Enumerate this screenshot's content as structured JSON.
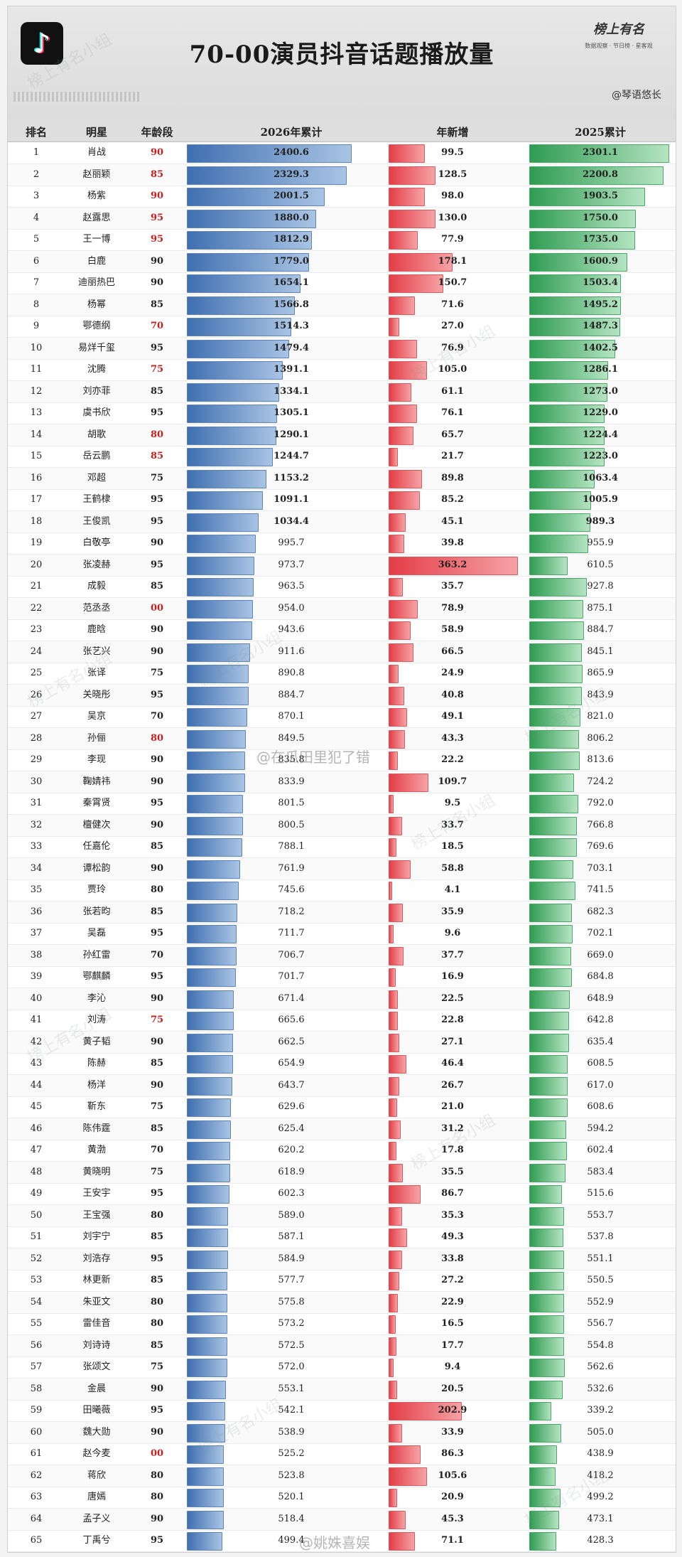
{
  "header": {
    "title": "70-00演员抖音话题播放量",
    "brand_name": "榜上有名",
    "brand_sub": "数据观察 · 节日榜 · 星客观",
    "author": "@琴语悠长",
    "watermark": "榜上有名小组",
    "weibo_mark_1": "@在瓜田里犯了错",
    "weibo_mark_2": "@姚姝喜娱"
  },
  "columns": {
    "rank": "排名",
    "star": "明星",
    "age": "年龄段",
    "total_2026": "2026年累计",
    "new": "年新增",
    "total_2025": "2025累计"
  },
  "colors": {
    "blue": "#3f6fb0",
    "red": "#e43d46",
    "green": "#2f9c52",
    "age_red": "#c41f1f"
  },
  "chart_data": {
    "type": "table",
    "title": "70-00演员抖音话题播放量",
    "columns": [
      "排名",
      "明星",
      "年龄段",
      "2026年累计",
      "年新增",
      "2025累计"
    ],
    "bar_scale_max": {
      "2026年累计": 2400.6,
      "年新增": 363.2,
      "2025累计": 2301.1
    },
    "rows": [
      {
        "rank": "1",
        "name": "肖战",
        "age": "90",
        "t2026": "2400.6",
        "inc": "99.5",
        "t2025": "2301.1",
        "red": true
      },
      {
        "rank": "2",
        "name": "赵丽颖",
        "age": "85",
        "t2026": "2329.3",
        "inc": "128.5",
        "t2025": "2200.8",
        "red": true
      },
      {
        "rank": "3",
        "name": "杨紫",
        "age": "90",
        "t2026": "2001.5",
        "inc": "98.0",
        "t2025": "1903.5",
        "red": true
      },
      {
        "rank": "4",
        "name": "赵露思",
        "age": "95",
        "t2026": "1880.0",
        "inc": "130.0",
        "t2025": "1750.0",
        "red": true
      },
      {
        "rank": "5",
        "name": "王一博",
        "age": "95",
        "t2026": "1812.9",
        "inc": "77.9",
        "t2025": "1735.0",
        "red": true
      },
      {
        "rank": "6",
        "name": "白鹿",
        "age": "90",
        "t2026": "1779.0",
        "inc": "178.1",
        "t2025": "1600.9",
        "red": false
      },
      {
        "rank": "7",
        "name": "迪丽热巴",
        "age": "90",
        "t2026": "1654.1",
        "inc": "150.7",
        "t2025": "1503.4",
        "red": false
      },
      {
        "rank": "8",
        "name": "杨幂",
        "age": "85",
        "t2026": "1566.8",
        "inc": "71.6",
        "t2025": "1495.2",
        "red": false
      },
      {
        "rank": "9",
        "name": "鄂德纲",
        "age": "70",
        "t2026": "1514.3",
        "inc": "27.0",
        "t2025": "1487.3",
        "red": true
      },
      {
        "rank": "10",
        "name": "易烊千玺",
        "age": "95",
        "t2026": "1479.4",
        "inc": "76.9",
        "t2025": "1402.5",
        "red": false
      },
      {
        "rank": "11",
        "name": "沈腾",
        "age": "75",
        "t2026": "1391.1",
        "inc": "105.0",
        "t2025": "1286.1",
        "red": true
      },
      {
        "rank": "12",
        "name": "刘亦菲",
        "age": "85",
        "t2026": "1334.1",
        "inc": "61.1",
        "t2025": "1273.0",
        "red": false
      },
      {
        "rank": "13",
        "name": "虞书欣",
        "age": "95",
        "t2026": "1305.1",
        "inc": "76.1",
        "t2025": "1229.0",
        "red": false
      },
      {
        "rank": "14",
        "name": "胡歌",
        "age": "80",
        "t2026": "1290.1",
        "inc": "65.7",
        "t2025": "1224.4",
        "red": true
      },
      {
        "rank": "15",
        "name": "岳云鹏",
        "age": "85",
        "t2026": "1244.7",
        "inc": "21.7",
        "t2025": "1223.0",
        "red": true
      },
      {
        "rank": "16",
        "name": "邓超",
        "age": "75",
        "t2026": "1153.2",
        "inc": "89.8",
        "t2025": "1063.4",
        "red": false
      },
      {
        "rank": "17",
        "name": "王鹤棣",
        "age": "95",
        "t2026": "1091.1",
        "inc": "85.2",
        "t2025": "1005.9",
        "red": false
      },
      {
        "rank": "18",
        "name": "王俊凯",
        "age": "95",
        "t2026": "1034.4",
        "inc": "45.1",
        "t2025": "989.3",
        "red": false
      },
      {
        "rank": "19",
        "name": "白敬亭",
        "age": "90",
        "t2026": "995.7",
        "inc": "39.8",
        "t2025": "955.9",
        "red": false
      },
      {
        "rank": "20",
        "name": "张凌赫",
        "age": "95",
        "t2026": "973.7",
        "inc": "363.2",
        "t2025": "610.5",
        "red": false
      },
      {
        "rank": "21",
        "name": "成毅",
        "age": "85",
        "t2026": "963.5",
        "inc": "35.7",
        "t2025": "927.8",
        "red": false
      },
      {
        "rank": "22",
        "name": "范丞丞",
        "age": "00",
        "t2026": "954.0",
        "inc": "78.9",
        "t2025": "875.1",
        "red": true
      },
      {
        "rank": "23",
        "name": "鹿晗",
        "age": "90",
        "t2026": "943.6",
        "inc": "58.9",
        "t2025": "884.7",
        "red": false
      },
      {
        "rank": "24",
        "name": "张艺兴",
        "age": "90",
        "t2026": "911.6",
        "inc": "66.5",
        "t2025": "845.1",
        "red": false
      },
      {
        "rank": "25",
        "name": "张译",
        "age": "75",
        "t2026": "890.8",
        "inc": "24.9",
        "t2025": "865.9",
        "red": false
      },
      {
        "rank": "26",
        "name": "关晓彤",
        "age": "95",
        "t2026": "884.7",
        "inc": "40.8",
        "t2025": "843.9",
        "red": false
      },
      {
        "rank": "27",
        "name": "吴京",
        "age": "70",
        "t2026": "870.1",
        "inc": "49.1",
        "t2025": "821.0",
        "red": false
      },
      {
        "rank": "28",
        "name": "孙俪",
        "age": "80",
        "t2026": "849.5",
        "inc": "43.3",
        "t2025": "806.2",
        "red": true
      },
      {
        "rank": "29",
        "name": "李现",
        "age": "90",
        "t2026": "835.8",
        "inc": "22.2",
        "t2025": "813.6",
        "red": false
      },
      {
        "rank": "30",
        "name": "鞠婧祎",
        "age": "90",
        "t2026": "833.9",
        "inc": "109.7",
        "t2025": "724.2",
        "red": false
      },
      {
        "rank": "31",
        "name": "秦霄贤",
        "age": "95",
        "t2026": "801.5",
        "inc": "9.5",
        "t2025": "792.0",
        "red": false
      },
      {
        "rank": "32",
        "name": "檀健次",
        "age": "90",
        "t2026": "800.5",
        "inc": "33.7",
        "t2025": "766.8",
        "red": false
      },
      {
        "rank": "33",
        "name": "任嘉伦",
        "age": "85",
        "t2026": "788.1",
        "inc": "18.5",
        "t2025": "769.6",
        "red": false
      },
      {
        "rank": "34",
        "name": "谭松韵",
        "age": "90",
        "t2026": "761.9",
        "inc": "58.8",
        "t2025": "703.1",
        "red": false
      },
      {
        "rank": "35",
        "name": "贾玲",
        "age": "80",
        "t2026": "745.6",
        "inc": "4.1",
        "t2025": "741.5",
        "red": false
      },
      {
        "rank": "36",
        "name": "张若昀",
        "age": "85",
        "t2026": "718.2",
        "inc": "35.9",
        "t2025": "682.3",
        "red": false
      },
      {
        "rank": "37",
        "name": "吴磊",
        "age": "95",
        "t2026": "711.7",
        "inc": "9.6",
        "t2025": "702.1",
        "red": false
      },
      {
        "rank": "38",
        "name": "孙红雷",
        "age": "70",
        "t2026": "706.7",
        "inc": "37.7",
        "t2025": "669.0",
        "red": false
      },
      {
        "rank": "39",
        "name": "鄂麒麟",
        "age": "95",
        "t2026": "701.7",
        "inc": "16.9",
        "t2025": "684.8",
        "red": false
      },
      {
        "rank": "40",
        "name": "李沁",
        "age": "90",
        "t2026": "671.4",
        "inc": "22.5",
        "t2025": "648.9",
        "red": false
      },
      {
        "rank": "41",
        "name": "刘涛",
        "age": "75",
        "t2026": "665.6",
        "inc": "22.8",
        "t2025": "642.8",
        "red": true
      },
      {
        "rank": "42",
        "name": "黄子韬",
        "age": "90",
        "t2026": "662.5",
        "inc": "27.1",
        "t2025": "635.4",
        "red": false
      },
      {
        "rank": "43",
        "name": "陈赫",
        "age": "85",
        "t2026": "654.9",
        "inc": "46.4",
        "t2025": "608.5",
        "red": false
      },
      {
        "rank": "44",
        "name": "杨洋",
        "age": "90",
        "t2026": "643.7",
        "inc": "26.7",
        "t2025": "617.0",
        "red": false
      },
      {
        "rank": "45",
        "name": "靳东",
        "age": "75",
        "t2026": "629.6",
        "inc": "21.0",
        "t2025": "608.6",
        "red": false
      },
      {
        "rank": "46",
        "name": "陈伟霆",
        "age": "85",
        "t2026": "625.4",
        "inc": "31.2",
        "t2025": "594.2",
        "red": false
      },
      {
        "rank": "47",
        "name": "黄渤",
        "age": "70",
        "t2026": "620.2",
        "inc": "17.8",
        "t2025": "602.4",
        "red": false
      },
      {
        "rank": "48",
        "name": "黄晓明",
        "age": "75",
        "t2026": "618.9",
        "inc": "35.5",
        "t2025": "583.4",
        "red": false
      },
      {
        "rank": "49",
        "name": "王安宇",
        "age": "95",
        "t2026": "602.3",
        "inc": "86.7",
        "t2025": "515.6",
        "red": false
      },
      {
        "rank": "50",
        "name": "王宝强",
        "age": "80",
        "t2026": "589.0",
        "inc": "35.3",
        "t2025": "553.7",
        "red": false
      },
      {
        "rank": "51",
        "name": "刘宇宁",
        "age": "85",
        "t2026": "587.1",
        "inc": "49.3",
        "t2025": "537.8",
        "red": false
      },
      {
        "rank": "52",
        "name": "刘浩存",
        "age": "95",
        "t2026": "584.9",
        "inc": "33.8",
        "t2025": "551.1",
        "red": false
      },
      {
        "rank": "53",
        "name": "林更新",
        "age": "85",
        "t2026": "577.7",
        "inc": "27.2",
        "t2025": "550.5",
        "red": false
      },
      {
        "rank": "54",
        "name": "朱亚文",
        "age": "80",
        "t2026": "575.8",
        "inc": "22.9",
        "t2025": "552.9",
        "red": false
      },
      {
        "rank": "55",
        "name": "雷佳音",
        "age": "80",
        "t2026": "573.2",
        "inc": "16.5",
        "t2025": "556.7",
        "red": false
      },
      {
        "rank": "56",
        "name": "刘诗诗",
        "age": "85",
        "t2026": "572.5",
        "inc": "17.7",
        "t2025": "554.8",
        "red": false
      },
      {
        "rank": "57",
        "name": "张颂文",
        "age": "75",
        "t2026": "572.0",
        "inc": "9.4",
        "t2025": "562.6",
        "red": false
      },
      {
        "rank": "58",
        "name": "金晨",
        "age": "90",
        "t2026": "553.1",
        "inc": "20.5",
        "t2025": "532.6",
        "red": false
      },
      {
        "rank": "59",
        "name": "田曦薇",
        "age": "95",
        "t2026": "542.1",
        "inc": "202.9",
        "t2025": "339.2",
        "red": false
      },
      {
        "rank": "60",
        "name": "魏大勋",
        "age": "90",
        "t2026": "538.9",
        "inc": "33.9",
        "t2025": "505.0",
        "red": false
      },
      {
        "rank": "61",
        "name": "赵今麦",
        "age": "00",
        "t2026": "525.2",
        "inc": "86.3",
        "t2025": "438.9",
        "red": true
      },
      {
        "rank": "62",
        "name": "蒋欣",
        "age": "80",
        "t2026": "523.8",
        "inc": "105.6",
        "t2025": "418.2",
        "red": false
      },
      {
        "rank": "63",
        "name": "唐嫣",
        "age": "80",
        "t2026": "520.1",
        "inc": "20.9",
        "t2025": "499.2",
        "red": false
      },
      {
        "rank": "64",
        "name": "孟子义",
        "age": "90",
        "t2026": "518.4",
        "inc": "45.3",
        "t2025": "473.1",
        "red": false
      },
      {
        "rank": "65",
        "name": "丁禹兮",
        "age": "95",
        "t2026": "499.4",
        "inc": "71.1",
        "t2025": "428.3",
        "red": false
      }
    ]
  }
}
